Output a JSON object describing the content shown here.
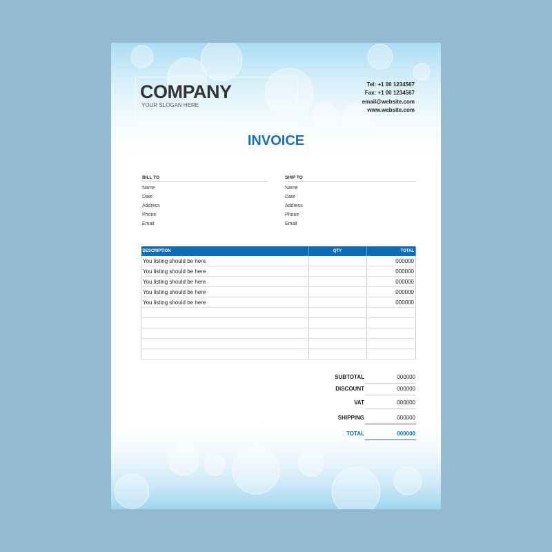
{
  "company": {
    "name": "COMPANY",
    "slogan": "YOUR SLOGAN HERE"
  },
  "contact": {
    "tel": "Tel: +1 00 1234567",
    "fax": "Fax: +1 00 1234567",
    "email": "email@website.com",
    "web": "www.website.com"
  },
  "title": "INVOICE",
  "bill_to": {
    "heading": "BILL TO",
    "fields": [
      "Name",
      "Date",
      "Address",
      "Phone",
      "Email"
    ]
  },
  "ship_to": {
    "heading": "SHIP TO",
    "fields": [
      "Name",
      "Date",
      "Address",
      "Phone",
      "Email"
    ]
  },
  "table": {
    "headers": [
      "DESCRIPTION",
      "QTY",
      "TOTAL"
    ],
    "rows": [
      [
        "You listing should be here",
        "",
        "000000"
      ],
      [
        "You listing should be here",
        "",
        "000000"
      ],
      [
        "You listing should be here",
        "",
        "000000"
      ],
      [
        "You listing should be here",
        "",
        "000000"
      ],
      [
        "You listing should be here",
        "",
        "000000"
      ],
      [
        "",
        "",
        ""
      ],
      [
        "",
        "",
        ""
      ],
      [
        "",
        "",
        ""
      ],
      [
        "",
        "",
        ""
      ],
      [
        "",
        "",
        ""
      ]
    ]
  },
  "totals": [
    {
      "label": "SUBTOTAL",
      "value": "000000"
    },
    {
      "label": "DISCOUNT",
      "value": "000000"
    },
    {
      "label": "VAT",
      "value": "000000"
    },
    {
      "label": "SHIPPING",
      "value": "000000"
    },
    {
      "label": "TOTAL",
      "value": "000000"
    }
  ],
  "colors": {
    "accent": "#0b6cba",
    "background": "#93bad2"
  }
}
